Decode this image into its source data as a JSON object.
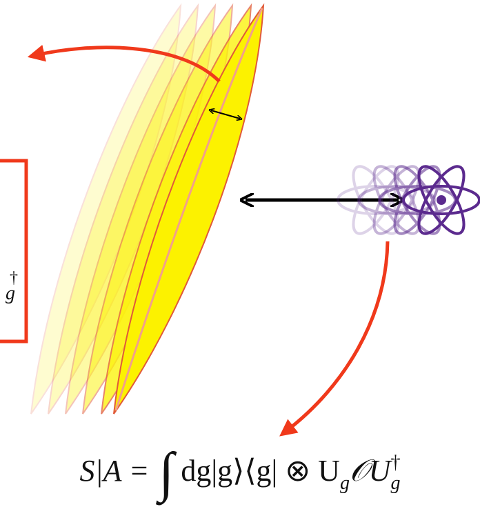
{
  "box_label": {
    "sup": "†",
    "sub": "g"
  },
  "formula": {
    "lhs": "S|A =",
    "integral": "∫",
    "body": "dg|g⟩⟨g| ⊗ U",
    "sub1": "g",
    "op": "𝒪U",
    "sub2": "g",
    "sup2": "†"
  }
}
